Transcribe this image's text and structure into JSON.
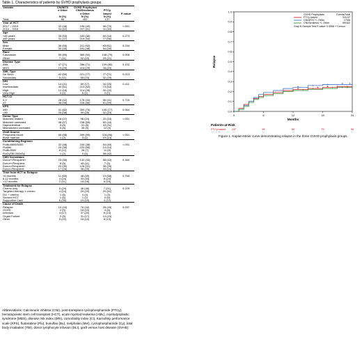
{
  "table_title": "Table 1.  Characteristics of patients by GVHD prophylaxis groups",
  "table": {
    "header_row1": [
      "Variable",
      "CNI/MTX",
      "GVHD Prophylaxis",
      "",
      ""
    ],
    "header_row2": [
      "",
      "± Other",
      "CNI/Sirolimus",
      "PTCy",
      ""
    ],
    "header_row3": [
      "",
      "",
      "± Other",
      "based",
      "P-value"
    ],
    "header_row4": [
      "",
      "N (%)",
      "N (%)",
      "N (%)",
      ""
    ],
    "total_row": [
      "Total",
      "66",
      "402",
      "137",
      ""
    ],
    "sections": [
      {
        "title": "Year of HCT",
        "rows": [
          [
            "2017 – 2019",
            "32 (48)",
            "195 (49)",
            "96 (70)",
            "<.001"
          ],
          [
            "2014 – 2016",
            "34 (52)",
            "207 (51)",
            "41 (30)",
            ""
          ]
        ]
      },
      {
        "title": "Age",
        "rows": [
          [
            "<60 years",
            "35 (53)",
            "183 (46)",
            "60 (44)",
            "0.273"
          ],
          [
            "≥60 years",
            "31 (47)",
            "219 (54)",
            "77 (56)",
            ""
          ]
        ]
      },
      {
        "title": "Sex",
        "rows": [
          [
            "Male",
            "36 (55)",
            "211 (52)",
            "83 (61)",
            "0.234"
          ],
          [
            "Female",
            "30 (45)",
            "191 (48)",
            "54 (39)",
            ""
          ]
        ]
      },
      {
        "title": "Race",
        "rows": [
          [
            "Caucasian",
            "59 (89)",
            "360 (90)",
            "108 (79)",
            "0.006"
          ],
          [
            "Other",
            "7 (11)",
            "42 (10)",
            "29 (21)",
            ""
          ]
        ]
      },
      {
        "title": "Disease Type",
        "rows": [
          [
            "AML",
            "47 (71)",
            "286 (71)",
            "109 (80)",
            "0.102"
          ],
          [
            "MDS",
            "19 (29)",
            "116 (29)",
            "28 (20)",
            ""
          ]
        ]
      },
      {
        "title": "AML Type",
        "rows": [
          [
            "De Novo",
            "42 (89)",
            "221 (77)",
            "77 (71)",
            "0.013"
          ],
          [
            "Secondary",
            "5 (11)",
            "65 (23)",
            "32 (29)",
            ""
          ]
        ]
      },
      {
        "title": "DRI",
        "rows": [
          [
            "Low",
            "14 (21)",
            "69 (17)",
            "34 (25)",
            "0.411"
          ],
          [
            "Intermediate",
            "40 (61)",
            "213 (53)",
            "73 (53)",
            ""
          ],
          [
            "High",
            "12 (18)",
            "114 (28)",
            "30 (22)",
            ""
          ],
          [
            "Very High",
            "0 (0)",
            "6 (2)",
            "0 (0)",
            ""
          ]
        ]
      },
      {
        "title": "HCT-CI",
        "rows": [
          [
            "0-2",
            "28 (42)",
            "176 (44)",
            "56 (41)",
            "0.716"
          ],
          [
            "≥3",
            "38 (58)",
            "226 (56)",
            "81 (59)",
            ""
          ]
        ]
      },
      {
        "title": "KPS",
        "rows": [
          [
            "≥90",
            "41 (62)",
            "300 (75)",
            "105 (77)",
            "0.064"
          ],
          [
            "<90",
            "25 (38)",
            "99 (25)",
            "32 (23)",
            ""
          ]
        ]
      },
      {
        "title": "Donor Type",
        "rows": [
          [
            "Matched related",
            "18 (27)",
            "98 (24)",
            "22 (16)",
            "<.001"
          ],
          [
            "Matched unrelated",
            "38 (57)",
            "238 (59)",
            "60 (44)",
            ""
          ],
          [
            "Haploidentical",
            "5 (8)",
            "31 (8)",
            "43 (31)",
            ""
          ],
          [
            "Mismatched unrelated",
            "5 (8)",
            "35 (9)",
            "12 (9)",
            ""
          ]
        ]
      },
      {
        "title": "Graft Source",
        "rows": [
          [
            "Peripheral blood",
            "65 (98)",
            "399 (99)",
            "118 (86)",
            "<.001"
          ],
          [
            "Bone marrow",
            "1 (2)",
            "3 (1)",
            "19 (14)",
            ""
          ]
        ]
      },
      {
        "title": "Conditioning Regimen",
        "rows": [
          [
            "FluBu4800/5300",
            "32 (48)",
            "154 (38)",
            "54 (40)",
            "<.001"
          ],
          [
            "FluMel",
            "25 (38)",
            "220 (55)",
            "14 (10)",
            ""
          ],
          [
            "FluBu3500",
            "8 (12)",
            "28 (7)",
            "11 (8)",
            ""
          ],
          [
            "FluCyTBI 200cGy",
            "1 (2)",
            "0 (0)",
            "58 (42)",
            ""
          ]
        ]
      },
      {
        "title": "CMV Serostatus",
        "rows": [
          [
            "Donor+/Recipient+",
            "23 (35)",
            "132 (33)",
            "58 (43)",
            "0.340"
          ],
          [
            "Donor+/Recipient-",
            "6 (9)",
            "45 (11)",
            "7 (5)",
            ""
          ],
          [
            "Donor-/Recipient+",
            "20 (30)",
            "126 (31)",
            "38 (28)",
            ""
          ],
          [
            "Donor-/Recipient-",
            "17 (26)",
            "98 (25)",
            "33 (24)",
            ""
          ]
        ]
      },
      {
        "title": "Time from HCT to Relapse",
        "rows": [
          [
            "<6 months",
            "11 (65)",
            "48 (49)",
            "19 (58)",
            "0.765"
          ],
          [
            "6-12 months",
            "4 (24)",
            "33 (33)",
            "8 (24)",
            ""
          ],
          [
            ">12 months",
            "2 (11)",
            "18 (18)",
            "6 (18)",
            ""
          ]
        ]
      },
      {
        "title": "Treatment for Relapse",
        "rows": [
          [
            "Chemo only",
            "5 (29)",
            "46 (46)",
            "7 (21)",
            "0.229"
          ],
          [
            "Targeted therapy ± chemo",
            "4 (24)",
            "29 (29)",
            "20 (61)",
            ""
          ],
          [
            "DLI + chemo",
            "1 (6)",
            "4 (4)",
            "1 (3)",
            ""
          ],
          [
            "Second HCT",
            "1 (6)",
            "1 (1)",
            "0 (0)",
            ""
          ],
          [
            "Supportive Care",
            "6 (35)",
            "19 (19)",
            "4 (12)",
            ""
          ]
        ]
      },
      {
        "title": "Cause of Death",
        "rows": [
          [
            "Relapse",
            "10 (43)",
            "76 (42)",
            "28 (45)",
            "0.937"
          ],
          [
            "GVHD",
            "2 (9)",
            "18 (10)",
            "4 (6)",
            ""
          ],
          [
            "Infection",
            "4 (17)",
            "37 (20)",
            "8 (13)",
            ""
          ],
          [
            "Organ Failure",
            "2 (9)",
            "31 (17)",
            "14 (23)",
            ""
          ],
          [
            "Other",
            "5 (22)",
            "18 (10)",
            "8 (13)",
            ""
          ]
        ]
      }
    ]
  },
  "abbreviations": "Abbreviations: Calcineurin inhibitor (CNI), post-transplant cyclophosphamide (PTCy), hematopoietic stem cell transplant (HCT), acute myeloid leukemia (AML), myelodysplastic syndrome (MDS), disease risk index (DRI), comorbidity index (CI), Karnofsky performance scale (KPS), fludarabine (Flu), busulfan (Bu), melphalan (Mel), cyclophosphamide (Cy), total body irradiation (TBI), donor lymphocyte infusion (DLI), graft versus host disease (GVHD)",
  "figure_caption": "Figure 1. Kaplan-Meier curve demonstrating relapse in the three GVHD prophylaxis groups.",
  "chart_data": {
    "type": "line",
    "xlabel": "Months",
    "ylabel": "Relapse",
    "xlim": [
      0,
      24
    ],
    "ylim": [
      0,
      1.0
    ],
    "x_ticks": [
      "0",
      "6",
      "12",
      "18",
      "24"
    ],
    "y_ticks": [
      "0.0",
      "0.1",
      "0.2",
      "0.3",
      "0.4",
      "0.5",
      "0.6",
      "0.7",
      "0.8",
      "0.9",
      "1.0"
    ],
    "legend_header": [
      "GVHD Prophylaxis",
      "Events/Total"
    ],
    "legend": [
      {
        "label": "PTCy based",
        "events": "33/137",
        "color": "#d00000"
      },
      {
        "label": "CNI/MTX +/- Other",
        "events": "17/66",
        "color": "#2060c0"
      },
      {
        "label": "CNI/Sirolimus +/- Other",
        "events": "99/402",
        "color": "#208020"
      }
    ],
    "legend_note": "Gray K-Sample Test P-value: 0.5558  + Censor",
    "series": [
      {
        "name": "PTCy based",
        "color": "#d00000",
        "points": [
          [
            0,
            0
          ],
          [
            1,
            0.03
          ],
          [
            2,
            0.07
          ],
          [
            3,
            0.1
          ],
          [
            4,
            0.13
          ],
          [
            5,
            0.15
          ],
          [
            6,
            0.17
          ],
          [
            8,
            0.19
          ],
          [
            10,
            0.21
          ],
          [
            12,
            0.22
          ],
          [
            15,
            0.23
          ],
          [
            18,
            0.24
          ],
          [
            21,
            0.25
          ],
          [
            24,
            0.25
          ]
        ]
      },
      {
        "name": "CNI/MTX +/- Other",
        "color": "#2060c0",
        "points": [
          [
            0,
            0
          ],
          [
            1,
            0.02
          ],
          [
            2,
            0.06
          ],
          [
            3,
            0.1
          ],
          [
            4,
            0.14
          ],
          [
            5,
            0.17
          ],
          [
            6,
            0.19
          ],
          [
            8,
            0.21
          ],
          [
            10,
            0.23
          ],
          [
            12,
            0.24
          ],
          [
            15,
            0.26
          ],
          [
            18,
            0.27
          ],
          [
            21,
            0.27
          ],
          [
            24,
            0.28
          ]
        ]
      },
      {
        "name": "CNI/Sirolimus +/- Other",
        "color": "#208020",
        "points": [
          [
            0,
            0
          ],
          [
            1,
            0.02
          ],
          [
            2,
            0.05
          ],
          [
            3,
            0.09
          ],
          [
            4,
            0.12
          ],
          [
            5,
            0.14
          ],
          [
            6,
            0.16
          ],
          [
            8,
            0.18
          ],
          [
            10,
            0.2
          ],
          [
            12,
            0.21
          ],
          [
            15,
            0.22
          ],
          [
            18,
            0.23
          ],
          [
            21,
            0.24
          ],
          [
            24,
            0.24
          ]
        ]
      }
    ],
    "censor_marks": {
      "PTCy based": [
        [
          13,
          0.23
        ],
        [
          15,
          0.24
        ],
        [
          17,
          0.24
        ],
        [
          19,
          0.25
        ],
        [
          21,
          0.25
        ],
        [
          23,
          0.25
        ]
      ],
      "CNI/MTX +/- Other": [
        [
          13,
          0.25
        ],
        [
          16,
          0.26
        ],
        [
          19,
          0.27
        ],
        [
          22,
          0.28
        ],
        [
          23.5,
          0.28
        ]
      ],
      "CNI/Sirolimus +/- Other": [
        [
          12,
          0.21
        ],
        [
          14,
          0.22
        ],
        [
          16,
          0.23
        ],
        [
          18,
          0.23
        ],
        [
          20,
          0.24
        ],
        [
          22,
          0.24
        ],
        [
          23,
          0.24
        ]
      ]
    },
    "at_risk_title": "Patients-at-Risk",
    "at_risk": [
      {
        "label": "PTCy based",
        "color": "#d00000",
        "values": [
          "137",
          "95",
          "80",
          "75",
          "55"
        ]
      },
      {
        "label": "CNI/MTX +/- Other",
        "color": "#2060c0",
        "values": [
          "66",
          "51",
          "45",
          "42",
          "34"
        ]
      },
      {
        "label": "CNI/Sirolimus +/- Other",
        "color": "#208020",
        "values": [
          "402",
          "285",
          "256",
          "236",
          "213"
        ]
      }
    ]
  }
}
